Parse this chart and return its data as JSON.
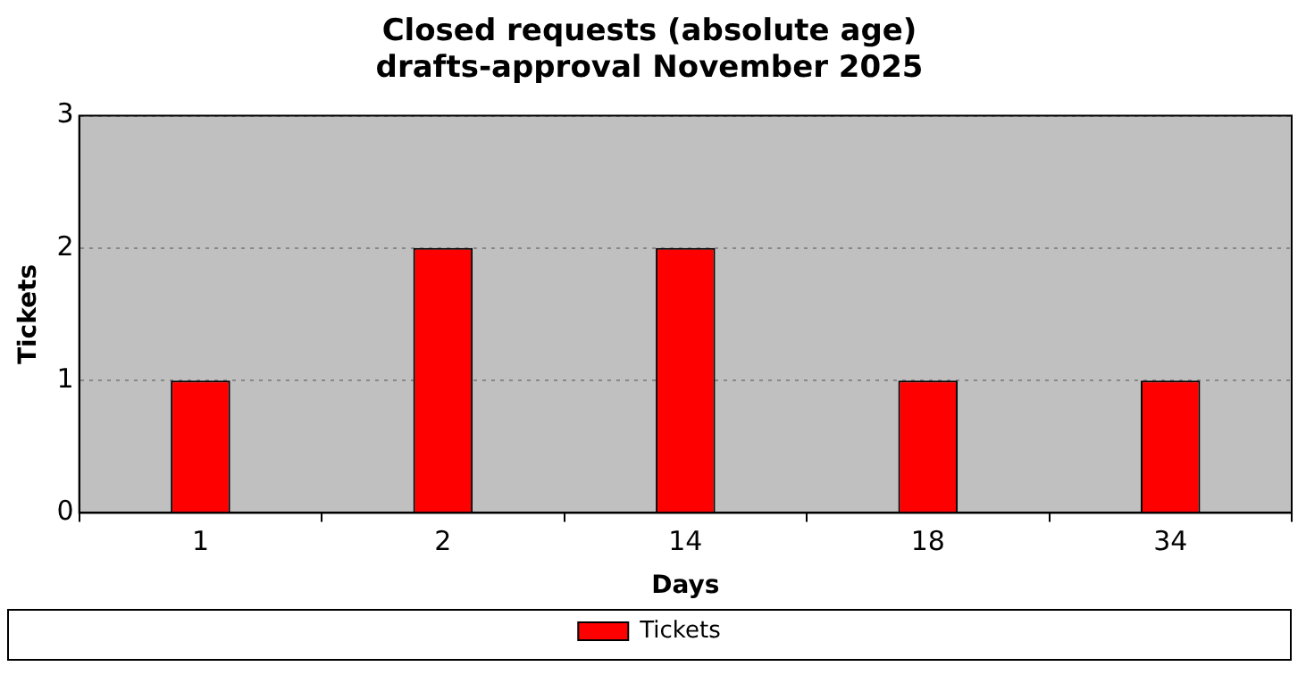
{
  "chart_data": {
    "type": "bar",
    "title": "Closed requests (absolute age)\ndrafts-approval November 2025",
    "xlabel": "Days",
    "ylabel": "Tickets",
    "categories": [
      "1",
      "2",
      "14",
      "18",
      "34"
    ],
    "series": [
      {
        "name": "Tickets",
        "color": "#ff0000",
        "values": [
          1,
          2,
          2,
          1,
          1
        ]
      }
    ],
    "ylim": [
      0,
      3
    ],
    "yticks": [
      0,
      1,
      2,
      3
    ],
    "grid": "y",
    "legend": "bottom"
  }
}
